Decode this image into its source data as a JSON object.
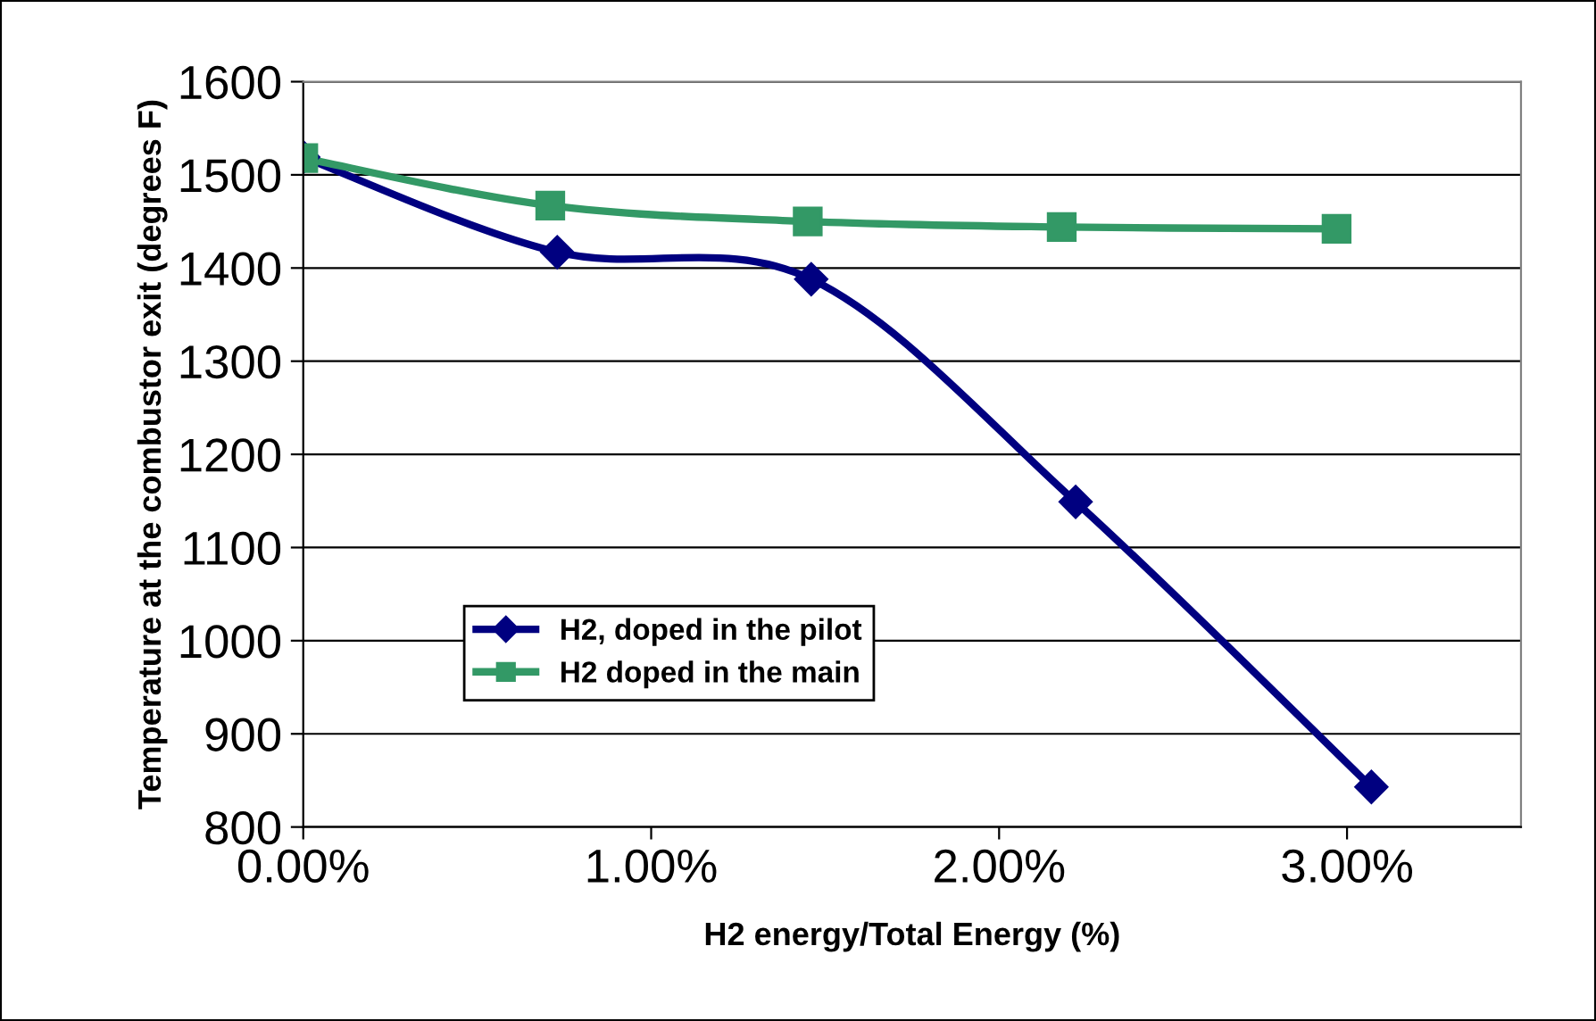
{
  "chart_data": {
    "type": "line",
    "xlabel": "H2 energy/Total Energy (%)",
    "ylabel": "Temperature at the combustor exit (degrees F)",
    "series": [
      {
        "name": "H2, doped in the pilot",
        "color": "#000080",
        "marker": "diamond",
        "x": [
          0,
          0.73,
          1.46,
          2.22,
          3.07
        ],
        "values": [
          1519,
          1417,
          1388,
          1149,
          843
        ]
      },
      {
        "name": "H2 doped in the main",
        "color": "#339966",
        "marker": "square",
        "x": [
          0,
          0.71,
          1.45,
          2.18,
          2.97
        ],
        "values": [
          1518,
          1467,
          1450,
          1444,
          1442
        ]
      }
    ],
    "xlim": [
      0,
      3.5
    ],
    "xticks": [
      {
        "value": 0,
        "label": "0.00%"
      },
      {
        "value": 1,
        "label": "1.00%"
      },
      {
        "value": 2,
        "label": "2.00%"
      },
      {
        "value": 3,
        "label": "3.00%"
      }
    ],
    "ylim": [
      800,
      1600
    ],
    "yticks": [
      800,
      900,
      1000,
      1100,
      1200,
      1300,
      1400,
      1500,
      1600
    ],
    "grid": "y",
    "legend": "bottom left",
    "line_style": "solid"
  }
}
